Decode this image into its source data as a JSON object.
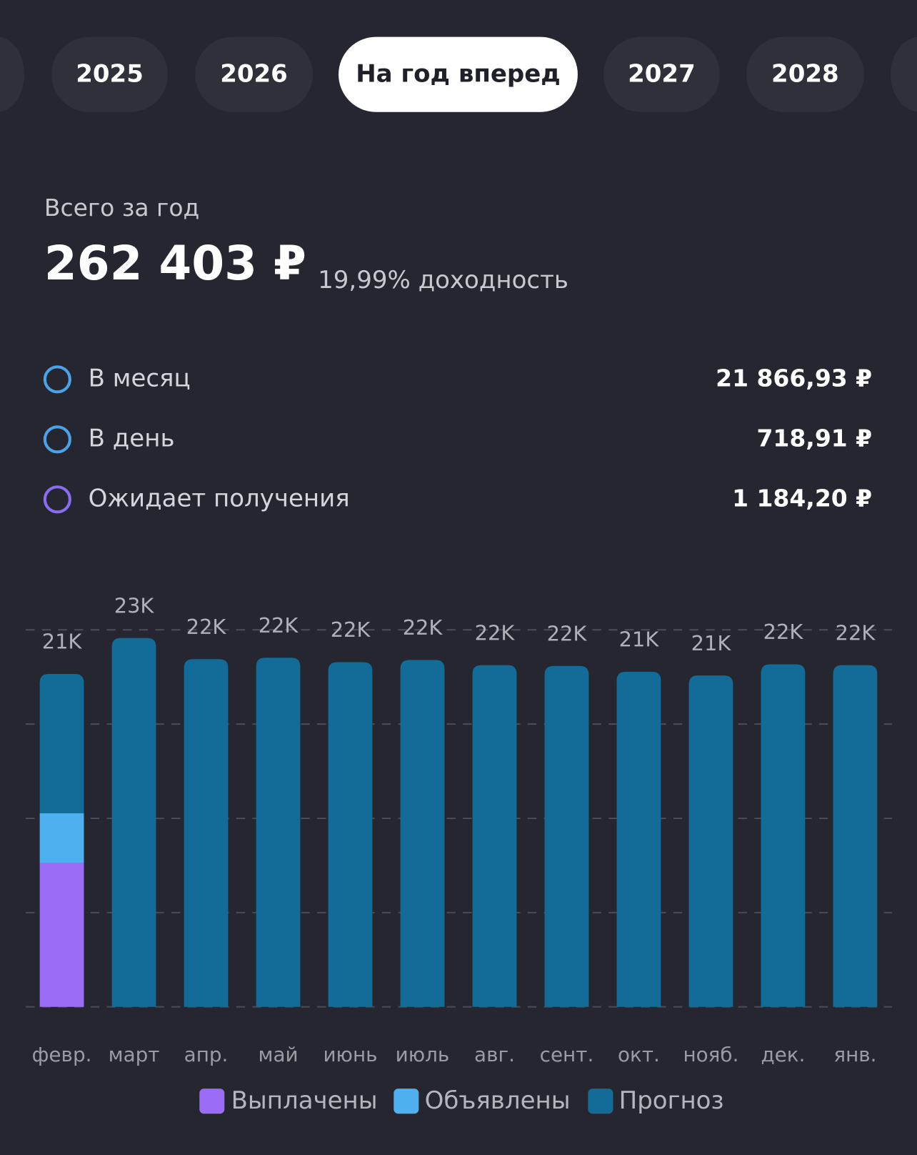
{
  "tabs": [
    "2025",
    "2026",
    "На год вперед",
    "2027",
    "2028"
  ],
  "summary": {
    "label": "Всего за год",
    "total": "262 403 ₽",
    "yield": "19,99% доходность"
  },
  "stats": [
    {
      "label": "В месяц",
      "value": "21 866,93 ₽"
    },
    {
      "label": "В день",
      "value": "718,91 ₽"
    },
    {
      "label": "Ожидает получения",
      "value": "1 184,20 ₽"
    }
  ],
  "chart_data": {
    "type": "stacked_bar",
    "categories": [
      "февр.",
      "март",
      "апр.",
      "май",
      "июнь",
      "июль",
      "авг.",
      "сент.",
      "окт.",
      "нояб.",
      "дек.",
      "янв."
    ],
    "series": [
      {
        "name": "Выплачены",
        "color": "#9b6cf5",
        "values": [
          9140,
          0,
          0,
          0,
          0,
          0,
          0,
          0,
          0,
          0,
          0,
          0
        ]
      },
      {
        "name": "Объявлены",
        "color": "#4fb0f0",
        "values": [
          3190,
          0,
          0,
          0,
          0,
          0,
          0,
          0,
          0,
          0,
          0,
          0
        ]
      },
      {
        "name": "Прогноз",
        "color": "#136c98",
        "values": [
          8860,
          23480,
          22130,
          22220,
          21940,
          22080,
          21750,
          21700,
          21330,
          21090,
          21800,
          21750
        ]
      }
    ],
    "totals": [
      21190,
      23480,
      22130,
      22220,
      21940,
      22080,
      21750,
      21700,
      21330,
      21090,
      21800,
      21750
    ],
    "total_labels": [
      "21K",
      "23K",
      "22K",
      "22K",
      "22K",
      "22K",
      "22K",
      "22K",
      "21K",
      "21K",
      "22K",
      "22K"
    ],
    "ylim": [
      0,
      24000
    ],
    "yticks": [
      0,
      6000,
      12000,
      18000,
      24000
    ],
    "grid": true
  }
}
